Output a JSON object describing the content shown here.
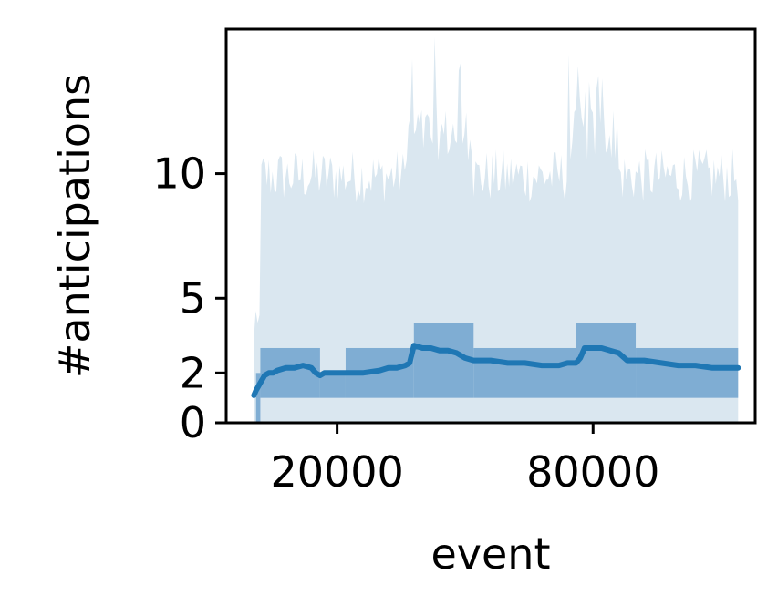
{
  "chart_data": {
    "type": "line",
    "title": "",
    "xlabel": "event",
    "ylabel": "#anticipations",
    "xlim": [
      -6000,
      118000
    ],
    "ylim": [
      0,
      15.8
    ],
    "xticks": [
      20000,
      80000
    ],
    "xtick_labels": [
      "20000",
      "80000"
    ],
    "yticks": [
      0,
      2,
      5,
      10
    ],
    "ytick_labels": [
      "0",
      "2",
      "5",
      "10"
    ],
    "grid": false,
    "legend": "none",
    "colors": {
      "line": "#1f77b4",
      "band_outer": "#dae7f0",
      "band_inner": "#7fadd3"
    },
    "series": [
      {
        "x": [
          500,
          1000,
          2000,
          3000,
          4000,
          5000,
          6000,
          8000,
          10000,
          12000,
          14000,
          15000,
          16000,
          17000,
          18000,
          22000,
          26000,
          30000,
          32000,
          34000,
          36000,
          37000,
          38000,
          40000,
          42000,
          44000,
          46000,
          48000,
          50000,
          52000,
          54000,
          56000,
          60000,
          64000,
          68000,
          72000,
          74000,
          76000,
          77000,
          78000,
          80000,
          82000,
          84000,
          86000,
          88000,
          92000,
          96000,
          100000,
          104000,
          108000,
          112000,
          114000
        ],
        "y": [
          1.1,
          1.3,
          1.6,
          1.9,
          2.0,
          2.0,
          2.1,
          2.2,
          2.2,
          2.3,
          2.2,
          2.0,
          1.9,
          2.0,
          2.0,
          2.0,
          2.0,
          2.1,
          2.2,
          2.2,
          2.3,
          2.4,
          3.1,
          3.0,
          3.0,
          2.9,
          2.9,
          2.8,
          2.6,
          2.5,
          2.5,
          2.5,
          2.4,
          2.4,
          2.3,
          2.3,
          2.4,
          2.4,
          2.6,
          3.0,
          3.0,
          3.0,
          2.9,
          2.8,
          2.5,
          2.5,
          2.4,
          2.3,
          2.3,
          2.2,
          2.2,
          2.2
        ]
      }
    ]
  }
}
